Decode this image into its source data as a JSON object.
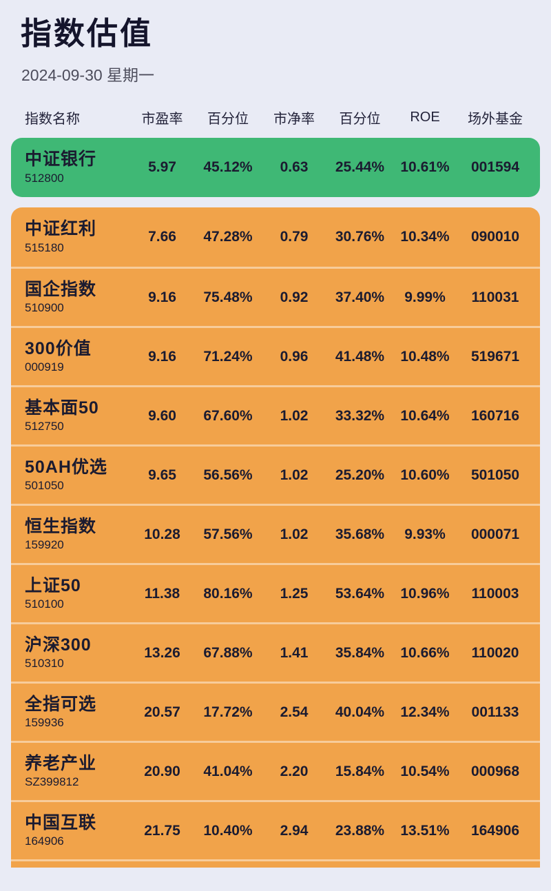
{
  "page": {
    "title": "指数估值",
    "date": "2024-09-30 星期一",
    "background_color": "#E9EBF5",
    "text_color": "#1B1B30"
  },
  "table": {
    "headers": [
      "指数名称",
      "市盈率",
      "百分位",
      "市净率",
      "百分位",
      "ROE",
      "场外基金"
    ],
    "colors": {
      "green": "#3FB875",
      "orange": "#F1A34A"
    },
    "rows": [
      {
        "name": "中证银行",
        "code": "512800",
        "pe": "5.97",
        "pe_pct": "45.12%",
        "pb": "0.63",
        "pb_pct": "25.44%",
        "roe": "10.61%",
        "fund": "001594",
        "highlight": "green",
        "partial": false
      },
      {
        "name": "中证红利",
        "code": "515180",
        "pe": "7.66",
        "pe_pct": "47.28%",
        "pb": "0.79",
        "pb_pct": "30.76%",
        "roe": "10.34%",
        "fund": "090010",
        "highlight": "orange",
        "partial": false
      },
      {
        "name": "国企指数",
        "code": "510900",
        "pe": "9.16",
        "pe_pct": "75.48%",
        "pb": "0.92",
        "pb_pct": "37.40%",
        "roe": "9.99%",
        "fund": "110031",
        "highlight": "orange",
        "partial": false
      },
      {
        "name": "300价值",
        "code": "000919",
        "pe": "9.16",
        "pe_pct": "71.24%",
        "pb": "0.96",
        "pb_pct": "41.48%",
        "roe": "10.48%",
        "fund": "519671",
        "highlight": "orange",
        "partial": false
      },
      {
        "name": "基本面50",
        "code": "512750",
        "pe": "9.60",
        "pe_pct": "67.60%",
        "pb": "1.02",
        "pb_pct": "33.32%",
        "roe": "10.64%",
        "fund": "160716",
        "highlight": "orange",
        "partial": false
      },
      {
        "name": "50AH优选",
        "code": "501050",
        "pe": "9.65",
        "pe_pct": "56.56%",
        "pb": "1.02",
        "pb_pct": "25.20%",
        "roe": "10.60%",
        "fund": "501050",
        "highlight": "orange",
        "partial": false
      },
      {
        "name": "恒生指数",
        "code": "159920",
        "pe": "10.28",
        "pe_pct": "57.56%",
        "pb": "1.02",
        "pb_pct": "35.68%",
        "roe": "9.93%",
        "fund": "000071",
        "highlight": "orange",
        "partial": false
      },
      {
        "name": "上证50",
        "code": "510100",
        "pe": "11.38",
        "pe_pct": "80.16%",
        "pb": "1.25",
        "pb_pct": "53.64%",
        "roe": "10.96%",
        "fund": "110003",
        "highlight": "orange",
        "partial": false
      },
      {
        "name": "沪深300",
        "code": "510310",
        "pe": "13.26",
        "pe_pct": "67.88%",
        "pb": "1.41",
        "pb_pct": "35.84%",
        "roe": "10.66%",
        "fund": "110020",
        "highlight": "orange",
        "partial": false
      },
      {
        "name": "全指可选",
        "code": "159936",
        "pe": "20.57",
        "pe_pct": "17.72%",
        "pb": "2.54",
        "pb_pct": "40.04%",
        "roe": "12.34%",
        "fund": "001133",
        "highlight": "orange",
        "partial": false
      },
      {
        "name": "养老产业",
        "code": "SZ399812",
        "pe": "20.90",
        "pe_pct": "41.04%",
        "pb": "2.20",
        "pb_pct": "15.84%",
        "roe": "10.54%",
        "fund": "000968",
        "highlight": "orange",
        "partial": false
      },
      {
        "name": "中国互联",
        "code": "164906",
        "pe": "21.75",
        "pe_pct": "10.40%",
        "pb": "2.94",
        "pb_pct": "23.88%",
        "roe": "13.51%",
        "fund": "164906",
        "highlight": "orange",
        "partial": false
      },
      {
        "name": "",
        "code": "",
        "pe": "",
        "pe_pct": "",
        "pb": "",
        "pb_pct": "",
        "roe": "",
        "fund": "",
        "highlight": "orange",
        "partial": true
      }
    ]
  }
}
